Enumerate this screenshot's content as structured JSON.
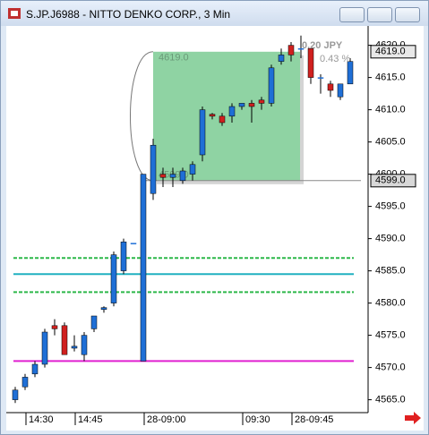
{
  "window_title": "S.JP.J6988 - NITTO DENKO CORP., 3 Min",
  "chart_data": {
    "type": "candlestick",
    "categories": [
      null,
      "14:30",
      null,
      null,
      null,
      null,
      "14:45",
      null,
      null,
      null,
      null,
      null,
      null,
      "28-09:00",
      null,
      null,
      null,
      null,
      null,
      null,
      null,
      null,
      null,
      "09:30",
      null,
      null,
      null,
      null,
      "28-09:45",
      null,
      null,
      null,
      null,
      null,
      null
    ],
    "open": [
      4565,
      4567,
      4569,
      4570.5,
      4576.5,
      4576.5,
      4573,
      4572,
      4576,
      4579,
      4580,
      4585,
      4589.3,
      4571,
      4597,
      4600,
      4599.5,
      4599,
      4600,
      4603,
      4609.3,
      4609,
      4609,
      4610.5,
      4611,
      4611.5,
      4611,
      4617.5,
      4620,
      4619.5,
      4619.5,
      4615,
      4614,
      4612,
      4614
    ],
    "high": [
      4567,
      4569,
      4571,
      4576,
      4577.5,
      4577,
      4575,
      4575.5,
      4578,
      4579.5,
      4588,
      4590,
      4589.3,
      4600,
      4605.5,
      4601,
      4601,
      4601,
      4602,
      4610.5,
      4609.5,
      4609.5,
      4611,
      4611,
      4611.5,
      4612,
      4617,
      4619.5,
      4620.5,
      4621.5,
      4619.5,
      4615.5,
      4614.5,
      4614,
      4618
    ],
    "low": [
      4564.5,
      4566.5,
      4568.5,
      4570,
      4575,
      4572,
      4572.5,
      4571,
      4575.5,
      4578.5,
      4579.5,
      4584.5,
      4589.3,
      4571,
      4596,
      4598,
      4598,
      4598.5,
      4599,
      4602,
      4608.5,
      4607.5,
      4608,
      4610,
      4608,
      4610,
      4610.5,
      4617,
      4617.5,
      4618,
      4614,
      4612.5,
      4612,
      4611.5,
      4614
    ],
    "close": [
      4566.5,
      4568.5,
      4570.5,
      4575.5,
      4576,
      4572,
      4573.3,
      4575,
      4578,
      4579.3,
      4587.5,
      4589.5,
      4589.3,
      4600,
      4604.5,
      4599.5,
      4600,
      4600.5,
      4601.5,
      4610,
      4609,
      4608,
      4610.5,
      4611,
      4610.5,
      4611,
      4616.5,
      4618.5,
      4618.5,
      4619.5,
      4615,
      4615,
      4613,
      4614,
      4617.5
    ],
    "up_color": "#1f6fd6",
    "down_color": "#d0201f",
    "ylim": [
      4563,
      4623
    ],
    "yticks": [
      {
        "value": 4565,
        "label": "4565.0"
      },
      {
        "value": 4570,
        "label": "4570.0"
      },
      {
        "value": 4575,
        "label": "4575.0"
      },
      {
        "value": 4580,
        "label": "4580.0"
      },
      {
        "value": 4585,
        "label": "4585.0"
      },
      {
        "value": 4590,
        "label": "4590.0"
      },
      {
        "value": 4595,
        "label": "4595.0"
      },
      {
        "value": 4600,
        "label": "4600.0"
      },
      {
        "value": 4605,
        "label": "4605.0"
      },
      {
        "value": 4610,
        "label": "4610.0"
      },
      {
        "value": 4615,
        "label": "4615.0"
      },
      {
        "value": 4620,
        "label": "4620.0"
      }
    ],
    "lines": [
      {
        "value": 4587,
        "color": "#2db84a",
        "dash": true
      },
      {
        "value": 4581.7,
        "color": "#2db84a",
        "dash": true
      },
      {
        "value": 4584.5,
        "color": "#20b0c0",
        "dash": false
      },
      {
        "value": 4571,
        "color": "#e020d0",
        "dash": false
      }
    ],
    "box": {
      "top": {
        "value": 4619,
        "label": "4619.0"
      },
      "bottom": {
        "value": 4599,
        "label": "4599.0"
      },
      "color": "#8fd3a3"
    },
    "markers": [
      {
        "value": 4619,
        "label": "4619.0"
      },
      {
        "value": 4599,
        "label": "4599.0"
      }
    ],
    "change_label": "0.20 JPY",
    "change_pct_label": "0.43 %"
  }
}
